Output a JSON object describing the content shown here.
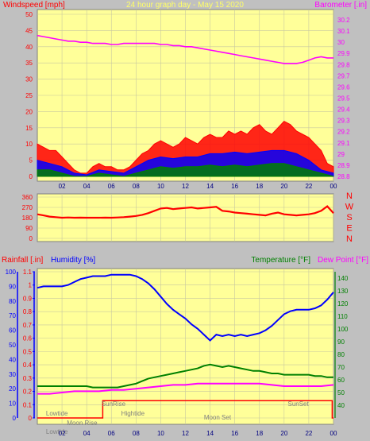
{
  "colors": {
    "plot_bg": "#ffff99",
    "frame_bg": "#c0c0c0",
    "grid": "#c8c8a0",
    "wind_gust": "#ff0000",
    "wind_avg": "#0000ff",
    "wind_low": "#008000",
    "barometer": "#ff00ff",
    "direction": "#ff0000",
    "humidity": "#0000ff",
    "temperature": "#008000",
    "dewpoint": "#ff00ff",
    "rain": "#ff0000",
    "title": "#ffff66",
    "events": "#808080"
  },
  "chart_data": [
    {
      "type": "area",
      "name": "wind-barometer",
      "title": "24 hour graph day - May 15 2020",
      "ylabel_left": "Windspeed [mph]",
      "ylabel_right": "Barometer [.in]",
      "x_ticks": [
        "02",
        "04",
        "06",
        "08",
        "10",
        "12",
        "14",
        "16",
        "18",
        "20",
        "22",
        "00"
      ],
      "y_left_ticks": [
        "0",
        "5",
        "10",
        "15",
        "20",
        "25",
        "30",
        "35",
        "40",
        "45",
        "50"
      ],
      "y_left_range": [
        0,
        50
      ],
      "y_right_ticks": [
        "28.8",
        "28.9",
        "29",
        "29.1",
        "29.2",
        "29.3",
        "29.4",
        "29.5",
        "29.6",
        "29.7",
        "29.8",
        "29.9",
        "30",
        "30.1",
        "30.2"
      ],
      "y_right_range": [
        28.8,
        30.25
      ],
      "grid": true,
      "series": [
        {
          "kind": "barometer",
          "x": [
            0,
            0.5,
            1,
            1.5,
            2,
            2.5,
            3,
            3.5,
            4,
            4.5,
            5,
            5.5,
            6,
            6.5,
            7,
            7.5,
            8,
            8.5,
            9,
            9.5,
            10,
            10.5,
            11,
            11.5,
            12,
            12.5,
            13,
            13.5,
            14,
            14.5,
            15,
            15.5,
            16,
            16.5,
            17,
            17.5,
            18,
            18.5,
            19,
            19.5,
            20,
            20.5,
            21,
            21.5,
            22,
            22.5,
            23,
            23.5,
            24
          ],
          "y": [
            30.06,
            30.05,
            30.04,
            30.03,
            30.02,
            30.01,
            30.01,
            30.0,
            30.0,
            29.99,
            29.99,
            29.99,
            29.98,
            29.98,
            29.99,
            29.99,
            29.99,
            29.99,
            29.99,
            29.99,
            29.98,
            29.98,
            29.97,
            29.97,
            29.96,
            29.96,
            29.95,
            29.94,
            29.93,
            29.92,
            29.91,
            29.9,
            29.89,
            29.88,
            29.87,
            29.86,
            29.85,
            29.84,
            29.83,
            29.82,
            29.81,
            29.81,
            29.81,
            29.82,
            29.84,
            29.86,
            29.87,
            29.86,
            29.86
          ]
        },
        {
          "kind": "gust",
          "x": [
            0,
            0.5,
            1,
            1.5,
            2,
            2.5,
            3,
            3.5,
            4,
            4.5,
            5,
            5.5,
            6,
            6.5,
            7,
            7.5,
            8,
            8.5,
            9,
            9.5,
            10,
            10.5,
            11,
            11.5,
            12,
            12.5,
            13,
            13.5,
            14,
            14.5,
            15,
            15.5,
            16,
            16.5,
            17,
            17.5,
            18,
            18.5,
            19,
            19.5,
            20,
            20.5,
            21,
            21.5,
            22,
            22.5,
            23,
            23.5,
            24
          ],
          "y": [
            10,
            9,
            8,
            8,
            6,
            4,
            2,
            1,
            1,
            3,
            4,
            3,
            3,
            2,
            2,
            3,
            5,
            7,
            8,
            10,
            11,
            10,
            9,
            10,
            12,
            11,
            10,
            12,
            13,
            12,
            12,
            14,
            13,
            14,
            13,
            15,
            16,
            14,
            13,
            15,
            17,
            16,
            14,
            13,
            12,
            10,
            8,
            4,
            3
          ]
        },
        {
          "kind": "average",
          "x": [
            0,
            1,
            2,
            3,
            4,
            5,
            6,
            7,
            8,
            9,
            10,
            11,
            12,
            13,
            14,
            15,
            16,
            17,
            18,
            19,
            20,
            21,
            22,
            23,
            24
          ],
          "y": [
            5,
            4,
            3,
            1,
            0.5,
            2,
            1.5,
            1,
            3,
            5,
            6,
            5.5,
            6,
            6,
            7,
            7,
            7.5,
            7,
            7.5,
            8,
            8,
            7,
            5,
            2,
            1
          ]
        },
        {
          "kind": "low",
          "x": [
            0,
            1,
            2,
            3,
            4,
            5,
            6,
            7,
            8,
            9,
            10,
            11,
            12,
            13,
            14,
            15,
            16,
            17,
            18,
            19,
            20,
            21,
            22,
            23,
            24
          ],
          "y": [
            2,
            2,
            1,
            0,
            0,
            1,
            0.5,
            0,
            1,
            2,
            3,
            2.5,
            3,
            3,
            3.5,
            3,
            3.5,
            3,
            3.5,
            4,
            4,
            3,
            2,
            1,
            0
          ]
        }
      ]
    },
    {
      "type": "scatter",
      "name": "wind-direction",
      "y_ticks": [
        "0",
        "90",
        "180",
        "270",
        "360"
      ],
      "y_range": [
        0,
        360
      ],
      "compass_labels": [
        "N",
        "W",
        "S",
        "E",
        "N"
      ],
      "series": [
        {
          "kind": "direction",
          "x": [
            0,
            0.5,
            1,
            1.5,
            2,
            2.5,
            3,
            3.5,
            4,
            4.5,
            5,
            5.5,
            6,
            6.5,
            7,
            7.5,
            8,
            8.5,
            9,
            9.5,
            10,
            10.5,
            11,
            11.5,
            12,
            12.5,
            13,
            13.5,
            14,
            14.5,
            15,
            15.5,
            16,
            16.5,
            17,
            17.5,
            18,
            18.5,
            19,
            19.5,
            20,
            20.5,
            21,
            21.5,
            22,
            22.5,
            23,
            23.5,
            24
          ],
          "y": [
            210,
            200,
            190,
            185,
            180,
            182,
            180,
            181,
            180,
            180,
            180,
            181,
            180,
            182,
            185,
            190,
            195,
            205,
            220,
            240,
            260,
            265,
            255,
            260,
            265,
            270,
            260,
            265,
            270,
            275,
            240,
            235,
            225,
            220,
            215,
            210,
            205,
            200,
            215,
            225,
            210,
            205,
            200,
            205,
            210,
            220,
            240,
            280,
            220
          ]
        }
      ]
    },
    {
      "type": "line",
      "name": "humidity-temperature-rain",
      "ylabel_left_1": "Rainfall [.in]",
      "ylabel_left_2": "Humidity [%]",
      "ylabel_right_1": "Temperature [°F]",
      "ylabel_right_2": "Dew Point [°F]",
      "rain_ticks": [
        "0",
        "0.1",
        "0.2",
        "0.3",
        "0.4",
        "0.5",
        "0.6",
        "0.7",
        "0.8",
        "0.9",
        "1",
        "1.1"
      ],
      "rain_range": [
        0,
        1.1
      ],
      "humidity_ticks": [
        "0",
        "10",
        "20",
        "30",
        "40",
        "50",
        "60",
        "70",
        "80",
        "90",
        "100"
      ],
      "humidity_range": [
        0,
        100
      ],
      "temp_ticks": [
        "40",
        "50",
        "60",
        "70",
        "80",
        "90",
        "100",
        "110",
        "120",
        "130",
        "140"
      ],
      "temp_range": [
        30,
        145
      ],
      "x_ticks": [
        "02",
        "04",
        "06",
        "08",
        "10",
        "12",
        "14",
        "16",
        "18",
        "20",
        "22",
        "00"
      ],
      "grid": true,
      "series": [
        {
          "kind": "humidity",
          "x": [
            0,
            0.5,
            1,
            1.5,
            2,
            2.5,
            3,
            3.5,
            4,
            4.5,
            5,
            5.5,
            6,
            6.5,
            7,
            7.5,
            8,
            8.5,
            9,
            9.5,
            10,
            10.5,
            11,
            11.5,
            12,
            12.5,
            13,
            13.5,
            14,
            14.5,
            15,
            15.5,
            16,
            16.5,
            17,
            17.5,
            18,
            18.5,
            19,
            19.5,
            20,
            20.5,
            21,
            21.5,
            22,
            22.5,
            23,
            23.5,
            24
          ],
          "y": [
            89,
            90,
            90,
            90,
            90,
            91,
            93,
            95,
            96,
            97,
            97,
            97,
            98,
            98,
            98,
            98,
            97,
            95,
            92,
            88,
            83,
            78,
            74,
            71,
            68,
            64,
            61,
            57,
            53,
            57,
            56,
            57,
            56,
            57,
            56,
            57,
            58,
            60,
            63,
            67,
            71,
            73,
            74,
            74,
            74,
            75,
            77,
            81,
            86
          ]
        },
        {
          "kind": "temperature",
          "x": [
            0,
            0.5,
            1,
            1.5,
            2,
            2.5,
            3,
            3.5,
            4,
            4.5,
            5,
            5.5,
            6,
            6.5,
            7,
            7.5,
            8,
            8.5,
            9,
            9.5,
            10,
            10.5,
            11,
            11.5,
            12,
            12.5,
            13,
            13.5,
            14,
            14.5,
            15,
            15.5,
            16,
            16.5,
            17,
            17.5,
            18,
            18.5,
            19,
            19.5,
            20,
            20.5,
            21,
            21.5,
            22,
            22.5,
            23,
            23.5,
            24
          ],
          "y": [
            55,
            55,
            55,
            55,
            55,
            55,
            55,
            55,
            55,
            54,
            54,
            54,
            54,
            54,
            55,
            56,
            57,
            59,
            61,
            62,
            63,
            64,
            65,
            66,
            67,
            68,
            69,
            71,
            72,
            71,
            70,
            71,
            70,
            69,
            68,
            67,
            67,
            66,
            65,
            65,
            64,
            64,
            64,
            64,
            64,
            63,
            63,
            62,
            62
          ]
        },
        {
          "kind": "dewpoint",
          "x": [
            0,
            1,
            2,
            3,
            4,
            5,
            6,
            7,
            8,
            9,
            10,
            11,
            12,
            13,
            14,
            15,
            16,
            17,
            18,
            19,
            20,
            21,
            22,
            23,
            24
          ],
          "y": [
            49,
            49,
            50,
            51,
            51,
            51,
            52,
            52,
            53,
            54,
            55,
            56,
            56,
            57,
            57,
            57,
            57,
            57,
            57,
            56,
            55,
            55,
            55,
            55,
            56
          ]
        },
        {
          "kind": "rain",
          "x": [
            0,
            5.3,
            5.3,
            23.9,
            23.9,
            24
          ],
          "y": [
            0,
            0,
            0.13,
            0.13,
            0,
            0
          ]
        }
      ],
      "events": [
        {
          "label": "Lowtide",
          "x": 0.7,
          "row": 1
        },
        {
          "label": "SunRise",
          "x": 5.2,
          "row": 0
        },
        {
          "label": "Hightide",
          "x": 6.8,
          "row": 1
        },
        {
          "label": "Moon Set",
          "x": 13.5,
          "row": 2
        },
        {
          "label": "SunSet",
          "x": 20.3,
          "row": 0
        },
        {
          "label": "Moon Rise",
          "x": 2.4,
          "row": 3
        },
        {
          "label": "Lowtide",
          "x": 0.7,
          "row": 4
        }
      ]
    }
  ]
}
